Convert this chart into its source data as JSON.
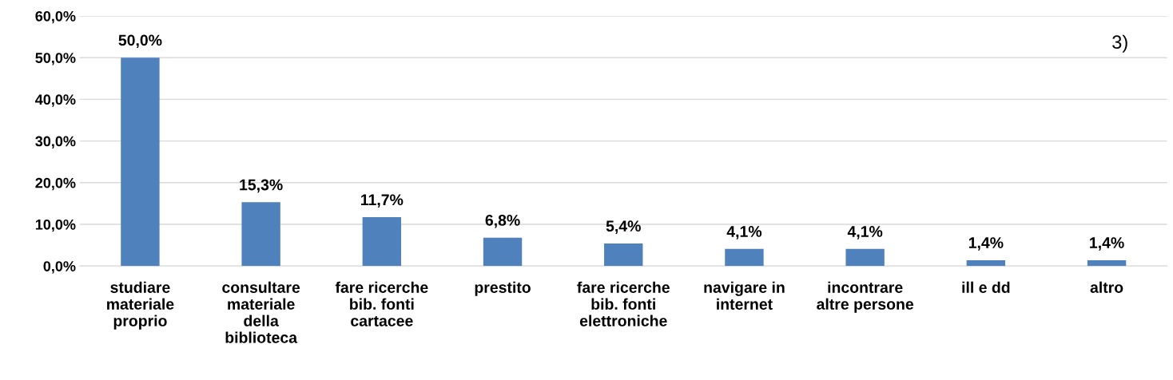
{
  "chart_data": {
    "type": "bar",
    "categories": [
      "studiare\nmateriale\nproprio",
      "consultare\nmateriale\ndella\nbiblioteca",
      "fare ricerche\nbib. fonti\ncartacee",
      "prestito",
      "fare ricerche\nbib. fonti\nelettroniche",
      "navigare in\ninternet",
      "incontrare\naltre persone",
      "ill e dd",
      "altro"
    ],
    "values": [
      50.0,
      15.3,
      11.7,
      6.8,
      5.4,
      4.1,
      4.1,
      1.4,
      1.4
    ],
    "value_labels": [
      "50,0%",
      "15,3%",
      "11,7%",
      "6,8%",
      "5,4%",
      "4,1%",
      "4,1%",
      "1,4%",
      "1,4%"
    ],
    "color": "#4f81bd",
    "ylim": [
      0,
      60
    ],
    "yticks": [
      {
        "value": 0,
        "label": "0,0%"
      },
      {
        "value": 10,
        "label": "10,0%"
      },
      {
        "value": 20,
        "label": "20,0%"
      },
      {
        "value": 30,
        "label": "30,0%"
      },
      {
        "value": 40,
        "label": "40,0%"
      },
      {
        "value": 50,
        "label": "50,0%"
      },
      {
        "value": 60,
        "label": "60,0%"
      }
    ],
    "grid": "y",
    "legend": false,
    "annotations": [
      "3)"
    ]
  }
}
